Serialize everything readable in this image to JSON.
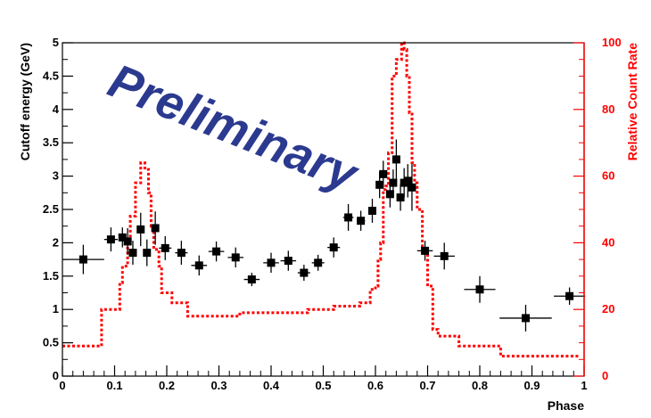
{
  "chart_data": {
    "type": "scatter",
    "title": "",
    "xlabel": "Phase",
    "ylabel": "Cutoff energy (GeV)",
    "y2label": "Relative Count Rate",
    "watermark": "Preliminary",
    "xlim": [
      0,
      1
    ],
    "ylim": [
      0,
      5
    ],
    "y2lim": [
      0,
      100
    ],
    "x_ticks": [
      "0",
      "0.1",
      "0.2",
      "0.3",
      "0.4",
      "0.5",
      "0.6",
      "0.7",
      "0.8",
      "0.9",
      "1"
    ],
    "y_ticks": [
      "0",
      "0.5",
      "1",
      "1.5",
      "2",
      "2.5",
      "3",
      "3.5",
      "4",
      "4.5",
      "5"
    ],
    "y2_ticks": [
      "0",
      "20",
      "40",
      "60",
      "80",
      "100"
    ],
    "colors": {
      "points": "#000000",
      "lightcurve": "#ff0000",
      "watermark": "#2b3a8f"
    },
    "series": [
      {
        "type": "scatter",
        "axis": "left",
        "points": [
          {
            "x": 0.04,
            "y": 1.75,
            "xerr": 0.04,
            "yerr": 0.22
          },
          {
            "x": 0.093,
            "y": 2.05,
            "xerr": 0.013,
            "yerr": 0.18
          },
          {
            "x": 0.115,
            "y": 2.08,
            "xerr": 0.006,
            "yerr": 0.15
          },
          {
            "x": 0.125,
            "y": 2.02,
            "xerr": 0.005,
            "yerr": 0.2
          },
          {
            "x": 0.135,
            "y": 1.85,
            "xerr": 0.005,
            "yerr": 0.18
          },
          {
            "x": 0.15,
            "y": 2.2,
            "xerr": 0.005,
            "yerr": 0.25
          },
          {
            "x": 0.162,
            "y": 1.85,
            "xerr": 0.006,
            "yerr": 0.2
          },
          {
            "x": 0.178,
            "y": 2.22,
            "xerr": 0.007,
            "yerr": 0.25
          },
          {
            "x": 0.197,
            "y": 1.92,
            "xerr": 0.012,
            "yerr": 0.18
          },
          {
            "x": 0.228,
            "y": 1.85,
            "xerr": 0.012,
            "yerr": 0.18
          },
          {
            "x": 0.262,
            "y": 1.66,
            "xerr": 0.015,
            "yerr": 0.15
          },
          {
            "x": 0.295,
            "y": 1.87,
            "xerr": 0.015,
            "yerr": 0.15
          },
          {
            "x": 0.332,
            "y": 1.78,
            "xerr": 0.015,
            "yerr": 0.15
          },
          {
            "x": 0.363,
            "y": 1.45,
            "xerr": 0.015,
            "yerr": 0.1
          },
          {
            "x": 0.4,
            "y": 1.7,
            "xerr": 0.015,
            "yerr": 0.15
          },
          {
            "x": 0.433,
            "y": 1.73,
            "xerr": 0.015,
            "yerr": 0.15
          },
          {
            "x": 0.463,
            "y": 1.55,
            "xerr": 0.012,
            "yerr": 0.12
          },
          {
            "x": 0.49,
            "y": 1.7,
            "xerr": 0.012,
            "yerr": 0.12
          },
          {
            "x": 0.52,
            "y": 1.93,
            "xerr": 0.012,
            "yerr": 0.15
          },
          {
            "x": 0.548,
            "y": 2.38,
            "xerr": 0.01,
            "yerr": 0.2
          },
          {
            "x": 0.572,
            "y": 2.33,
            "xerr": 0.008,
            "yerr": 0.15
          },
          {
            "x": 0.594,
            "y": 2.48,
            "xerr": 0.006,
            "yerr": 0.18
          },
          {
            "x": 0.608,
            "y": 2.87,
            "xerr": 0.004,
            "yerr": 0.2
          },
          {
            "x": 0.615,
            "y": 3.03,
            "xerr": 0.004,
            "yerr": 0.2
          },
          {
            "x": 0.628,
            "y": 2.73,
            "xerr": 0.004,
            "yerr": 0.2
          },
          {
            "x": 0.634,
            "y": 2.9,
            "xerr": 0.003,
            "yerr": 0.2
          },
          {
            "x": 0.64,
            "y": 3.25,
            "xerr": 0.003,
            "yerr": 0.3
          },
          {
            "x": 0.648,
            "y": 2.68,
            "xerr": 0.003,
            "yerr": 0.2
          },
          {
            "x": 0.655,
            "y": 2.9,
            "xerr": 0.004,
            "yerr": 0.22
          },
          {
            "x": 0.662,
            "y": 2.93,
            "xerr": 0.004,
            "yerr": 0.25
          },
          {
            "x": 0.67,
            "y": 2.83,
            "xerr": 0.005,
            "yerr": 0.35
          },
          {
            "x": 0.695,
            "y": 1.88,
            "xerr": 0.015,
            "yerr": 0.15
          },
          {
            "x": 0.732,
            "y": 1.8,
            "xerr": 0.02,
            "yerr": 0.2
          },
          {
            "x": 0.8,
            "y": 1.3,
            "xerr": 0.03,
            "yerr": 0.2
          },
          {
            "x": 0.888,
            "y": 0.87,
            "xerr": 0.05,
            "yerr": 0.2
          },
          {
            "x": 0.972,
            "y": 1.2,
            "xerr": 0.03,
            "yerr": 0.13
          }
        ]
      },
      {
        "type": "line",
        "axis": "right",
        "style": "dotted-step",
        "x": [
          0.0,
          0.075,
          0.08,
          0.11,
          0.115,
          0.125,
          0.13,
          0.14,
          0.15,
          0.158,
          0.165,
          0.17,
          0.175,
          0.185,
          0.19,
          0.21,
          0.24,
          0.28,
          0.34,
          0.4,
          0.44,
          0.47,
          0.52,
          0.56,
          0.57,
          0.59,
          0.6,
          0.605,
          0.61,
          0.615,
          0.62,
          0.625,
          0.632,
          0.64,
          0.65,
          0.655,
          0.66,
          0.665,
          0.67,
          0.675,
          0.68,
          0.69,
          0.7,
          0.71,
          0.72,
          0.73,
          0.74,
          0.75,
          0.76,
          0.8,
          0.84,
          0.98
        ],
        "values": [
          9,
          20,
          20,
          28,
          33,
          40,
          48,
          58,
          64,
          62,
          55,
          45,
          38,
          33,
          25,
          22,
          18,
          18,
          19,
          19,
          19,
          20,
          21,
          21,
          22,
          26,
          27,
          35,
          40,
          56,
          57,
          67,
          90,
          95,
          100,
          98,
          90,
          79,
          64,
          58,
          50,
          38,
          27,
          14,
          12,
          12,
          12,
          12,
          9,
          9,
          6,
          6
        ]
      }
    ]
  }
}
